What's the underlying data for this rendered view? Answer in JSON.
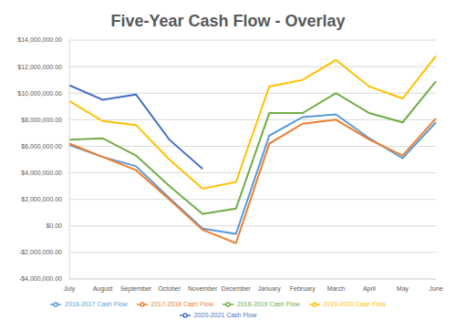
{
  "chart_data": {
    "type": "line",
    "title": "Five-Year Cash Flow - Overlay",
    "categories": [
      "July",
      "August",
      "September",
      "October",
      "November",
      "December",
      "January",
      "February",
      "March",
      "April",
      "May",
      "June"
    ],
    "series": [
      {
        "name": "2016-2017 Cash Flow",
        "color": "#5b9bd5",
        "values": [
          6100000,
          5200000,
          4500000,
          2100000,
          -200000,
          -600000,
          6800000,
          8200000,
          8400000,
          6600000,
          5100000,
          7800000
        ]
      },
      {
        "name": "2017-2018 Cash Flow",
        "color": "#ed7d31",
        "values": [
          6200000,
          5200000,
          4200000,
          2000000,
          -300000,
          -1300000,
          6200000,
          7700000,
          8000000,
          6500000,
          5300000,
          8100000
        ]
      },
      {
        "name": "2018-2019 Cash Flow",
        "color": "#70ad47",
        "values": [
          6500000,
          6600000,
          5300000,
          3000000,
          900000,
          1300000,
          8500000,
          8500000,
          10000000,
          8500000,
          7800000,
          10900000
        ]
      },
      {
        "name": "2019-2020 Cash Flow",
        "color": "#ffc000",
        "values": [
          9400000,
          7900000,
          7600000,
          5000000,
          2800000,
          3300000,
          10500000,
          11000000,
          12500000,
          10500000,
          9600000,
          12800000
        ]
      },
      {
        "name": "2020-2021 Cash Flow",
        "color": "#4472c4",
        "values": [
          10600000,
          9500000,
          9900000,
          6500000,
          4300000,
          null,
          null,
          null,
          null,
          null,
          null,
          null
        ]
      }
    ],
    "ylim": [
      -4000000,
      14000000
    ],
    "yticks": [
      {
        "value": -4000000,
        "label": "-$4,000,000.00"
      },
      {
        "value": -2000000,
        "label": "-$2,000,000.00"
      },
      {
        "value": 0,
        "label": "$0.00"
      },
      {
        "value": 2000000,
        "label": "$2,000,000.00"
      },
      {
        "value": 4000000,
        "label": "$4,000,000.00"
      },
      {
        "value": 6000000,
        "label": "$6,000,000.00"
      },
      {
        "value": 8000000,
        "label": "$8,000,000.00"
      },
      {
        "value": 10000000,
        "label": "$10,000,000.00"
      },
      {
        "value": 12000000,
        "label": "$12,000,000.00"
      },
      {
        "value": 14000000,
        "label": "$14,000,000.00"
      }
    ],
    "grid": true,
    "legend": "bottom",
    "marker": "none"
  }
}
